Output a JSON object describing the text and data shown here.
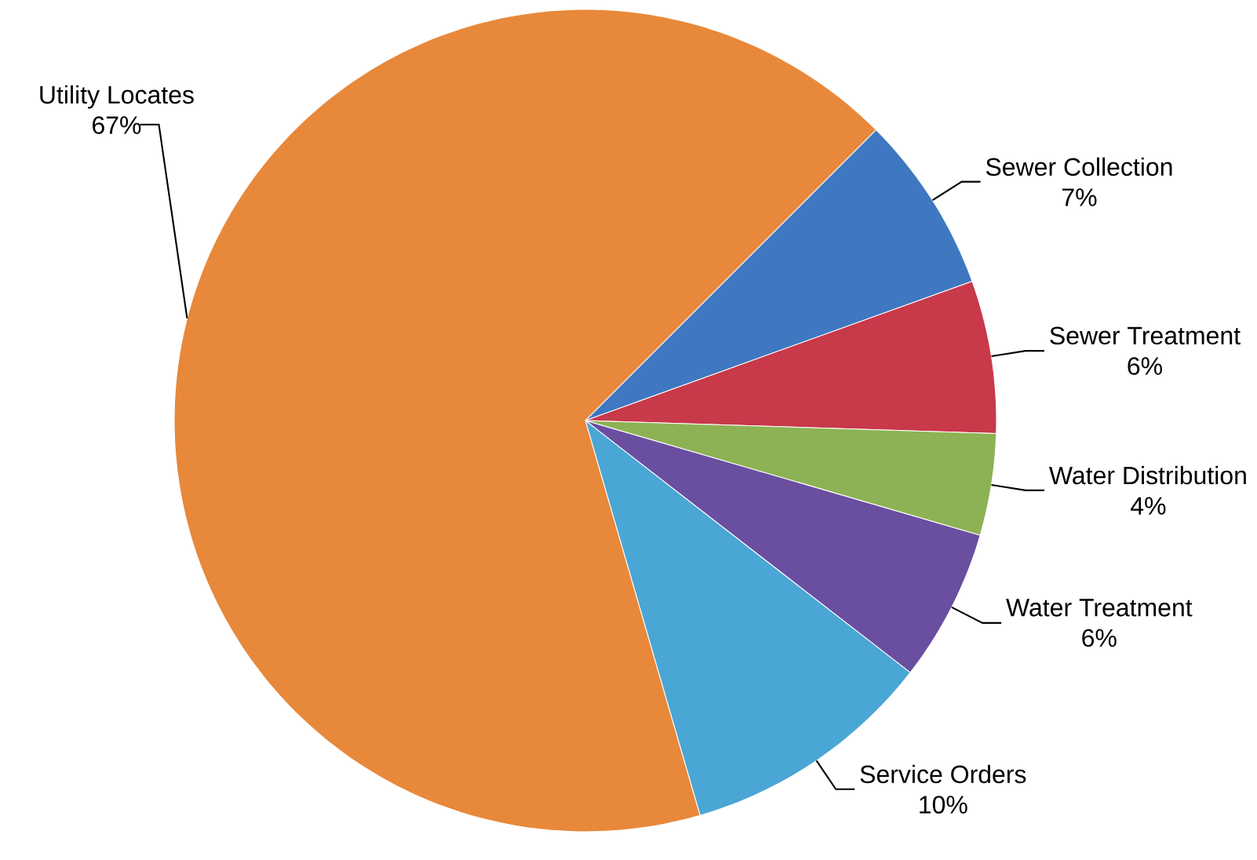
{
  "chart_data": {
    "type": "pie",
    "categories": [
      "Sewer Collection",
      "Sewer Treatment",
      "Water Distribution",
      "Water Treatment",
      "Service Orders",
      "Utility Locates"
    ],
    "values": [
      7,
      6,
      4,
      6,
      10,
      67
    ],
    "value_labels": [
      "7%",
      "6%",
      "4%",
      "6%",
      "10%",
      "67%"
    ],
    "colors": [
      "#3f78c0",
      "#c8394a",
      "#8db255",
      "#6a4ea0",
      "#4aa6d4",
      "#e8883a"
    ]
  }
}
